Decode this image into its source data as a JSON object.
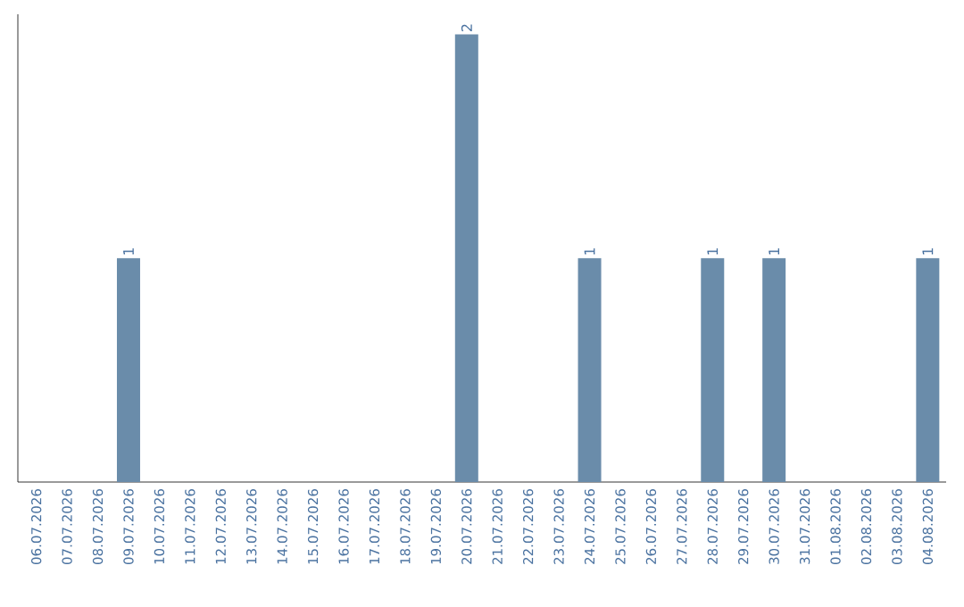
{
  "chart_data": {
    "type": "bar",
    "categories": [
      "06.07.2026",
      "07.07.2026",
      "08.07.2026",
      "09.07.2026",
      "10.07.2026",
      "11.07.2026",
      "12.07.2026",
      "13.07.2026",
      "14.07.2026",
      "15.07.2026",
      "16.07.2026",
      "17.07.2026",
      "18.07.2026",
      "19.07.2026",
      "20.07.2026",
      "21.07.2026",
      "22.07.2026",
      "23.07.2026",
      "24.07.2026",
      "25.07.2026",
      "26.07.2026",
      "27.07.2026",
      "28.07.2026",
      "29.07.2026",
      "30.07.2026",
      "31.07.2026",
      "01.08.2026",
      "02.08.2026",
      "03.08.2026",
      "04.08.2026"
    ],
    "values": [
      0,
      0,
      0,
      1,
      0,
      0,
      0,
      0,
      0,
      0,
      0,
      0,
      0,
      0,
      2,
      0,
      0,
      0,
      1,
      0,
      0,
      0,
      1,
      0,
      1,
      0,
      0,
      0,
      0,
      1
    ],
    "value_labels": [
      null,
      null,
      null,
      "1",
      null,
      null,
      null,
      null,
      null,
      null,
      null,
      null,
      null,
      null,
      "2",
      null,
      null,
      null,
      "1",
      null,
      null,
      null,
      "1",
      null,
      "1",
      null,
      null,
      null,
      null,
      "1"
    ],
    "color": "#6a8caa",
    "tick_labels": "x"
  }
}
